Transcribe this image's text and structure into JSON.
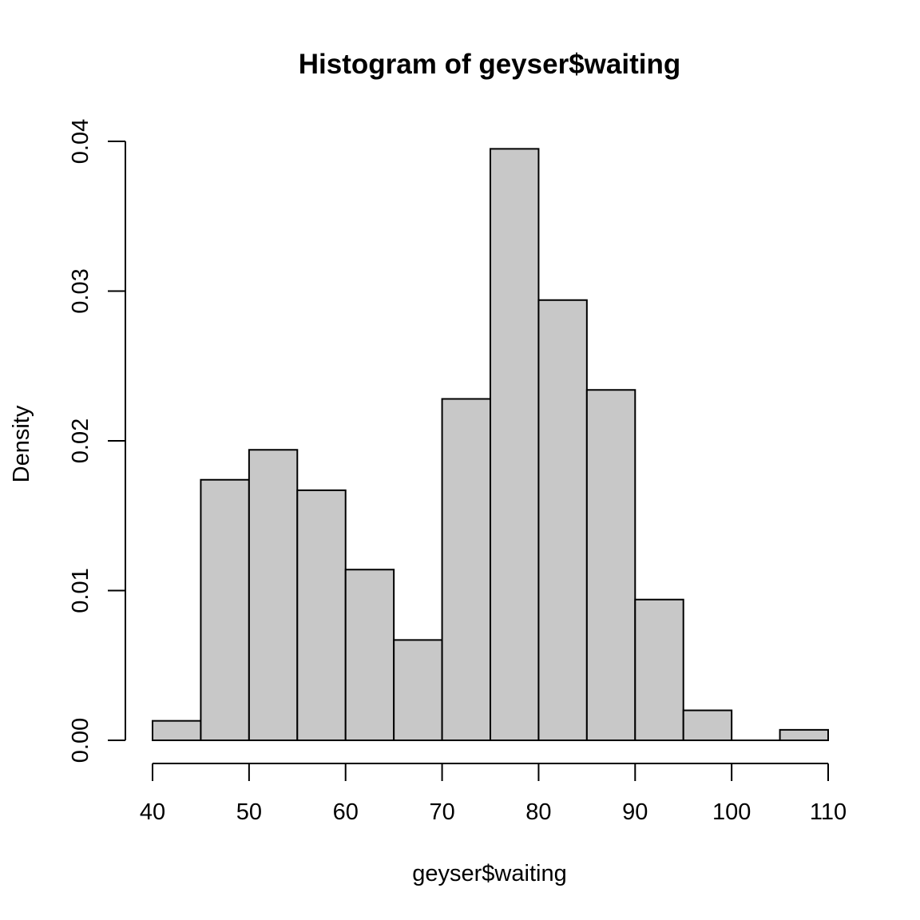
{
  "chart_data": {
    "type": "bar",
    "title": "Histogram of geyser$waiting",
    "xlabel": "geyser$waiting",
    "ylabel": "Density",
    "bins": [
      {
        "start": 40,
        "end": 45,
        "density": 0.0013
      },
      {
        "start": 45,
        "end": 50,
        "density": 0.0174
      },
      {
        "start": 50,
        "end": 55,
        "density": 0.0194
      },
      {
        "start": 55,
        "end": 60,
        "density": 0.0167
      },
      {
        "start": 60,
        "end": 65,
        "density": 0.0114
      },
      {
        "start": 65,
        "end": 70,
        "density": 0.0067
      },
      {
        "start": 70,
        "end": 75,
        "density": 0.0228
      },
      {
        "start": 75,
        "end": 80,
        "density": 0.0395
      },
      {
        "start": 80,
        "end": 85,
        "density": 0.0294
      },
      {
        "start": 85,
        "end": 90,
        "density": 0.0234
      },
      {
        "start": 90,
        "end": 95,
        "density": 0.0094
      },
      {
        "start": 95,
        "end": 100,
        "density": 0.002
      },
      {
        "start": 100,
        "end": 105,
        "density": 0.0
      },
      {
        "start": 105,
        "end": 110,
        "density": 0.0007
      }
    ],
    "xlim": [
      40,
      110
    ],
    "ylim": [
      0,
      0.04
    ],
    "x_ticks": [
      "40",
      "50",
      "60",
      "70",
      "80",
      "90",
      "100",
      "110"
    ],
    "y_ticks": [
      "0.00",
      "0.01",
      "0.02",
      "0.03",
      "0.04"
    ],
    "bar_color": "#c8c8c8",
    "edge_color": "#000000",
    "grid": false,
    "legend": "none"
  }
}
